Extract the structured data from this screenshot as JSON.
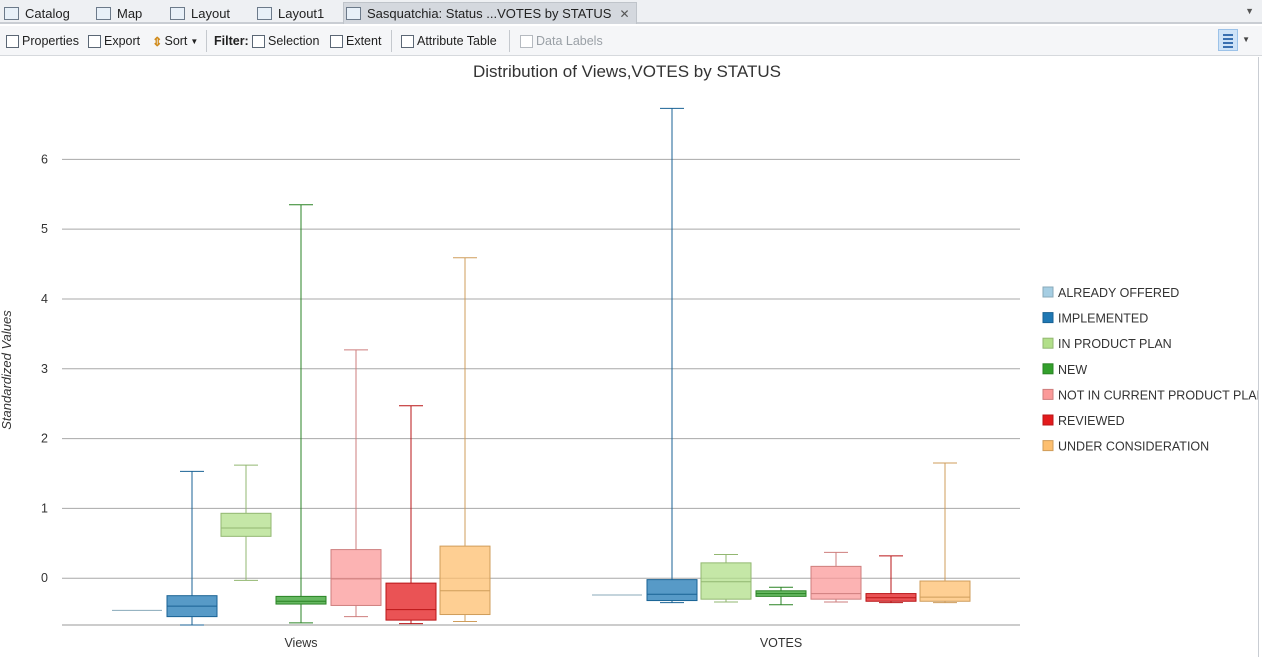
{
  "tabs": [
    {
      "label": "Catalog",
      "icon": "catalog-icon"
    },
    {
      "label": "Map",
      "icon": "map-icon"
    },
    {
      "label": "Layout",
      "icon": "layout-icon"
    },
    {
      "label": "Layout1",
      "icon": "layout-icon"
    },
    {
      "label": "Sasquatchia: Status ...VOTES by STATUS",
      "icon": "chart-icon",
      "active": true,
      "close": "✕"
    }
  ],
  "toolbar": {
    "properties": "Properties",
    "export": "Export",
    "sort": "Sort",
    "filter_label": "Filter:",
    "selection": "Selection",
    "extent": "Extent",
    "attribute_table": "Attribute Table",
    "data_labels": "Data Labels"
  },
  "chart_data": {
    "type": "boxplot",
    "title": "Distribution of Views,VOTES by STATUS",
    "xlabel": "",
    "ylabel": "Standardized Values",
    "categories": [
      "Views",
      "VOTES"
    ],
    "y_ticks": [
      0,
      1,
      2,
      3,
      4,
      5,
      6
    ],
    "ylim": [
      -0.67,
      6.85
    ],
    "grid": true,
    "legend_position": "right",
    "series": [
      {
        "name": "ALREADY OFFERED",
        "color": "#a6cee3",
        "boxes": [
          {
            "min": -0.46,
            "q1": -0.46,
            "median": -0.46,
            "q3": -0.46,
            "max": -0.46
          },
          {
            "min": -0.24,
            "q1": -0.24,
            "median": -0.24,
            "q3": -0.24,
            "max": -0.24
          }
        ]
      },
      {
        "name": "IMPLEMENTED",
        "color": "#1f78b4",
        "boxes": [
          {
            "min": -0.67,
            "q1": -0.55,
            "median": -0.4,
            "q3": -0.25,
            "max": 1.53
          },
          {
            "min": -0.35,
            "q1": -0.32,
            "median": -0.23,
            "q3": -0.02,
            "max": 6.73
          }
        ]
      },
      {
        "name": "IN PRODUCT PLAN",
        "color": "#b2df8a",
        "boxes": [
          {
            "min": -0.03,
            "q1": 0.6,
            "median": 0.72,
            "q3": 0.93,
            "max": 1.62
          },
          {
            "min": -0.34,
            "q1": -0.3,
            "median": -0.05,
            "q3": 0.22,
            "max": 0.34
          }
        ]
      },
      {
        "name": "NEW",
        "color": "#33a02c",
        "boxes": [
          {
            "min": -0.64,
            "q1": -0.37,
            "median": -0.33,
            "q3": -0.26,
            "max": 5.35
          },
          {
            "min": -0.38,
            "q1": -0.26,
            "median": -0.22,
            "q3": -0.18,
            "max": -0.13
          }
        ]
      },
      {
        "name": "NOT IN CURRENT PRODUCT PLAN",
        "color": "#fb9a99",
        "boxes": [
          {
            "min": -0.55,
            "q1": -0.39,
            "median": -0.01,
            "q3": 0.41,
            "max": 3.27
          },
          {
            "min": -0.34,
            "q1": -0.3,
            "median": -0.22,
            "q3": 0.17,
            "max": 0.37
          }
        ]
      },
      {
        "name": "REVIEWED",
        "color": "#e31a1c",
        "boxes": [
          {
            "min": -0.65,
            "q1": -0.6,
            "median": -0.45,
            "q3": -0.07,
            "max": 2.47
          },
          {
            "min": -0.35,
            "q1": -0.33,
            "median": -0.28,
            "q3": -0.22,
            "max": 0.32
          }
        ]
      },
      {
        "name": "UNDER CONSIDERATION",
        "color": "#fdbf6f",
        "boxes": [
          {
            "min": -0.62,
            "q1": -0.52,
            "median": -0.18,
            "q3": 0.46,
            "max": 4.59
          },
          {
            "min": -0.35,
            "q1": -0.33,
            "median": -0.27,
            "q3": -0.04,
            "max": 1.65
          }
        ]
      }
    ]
  }
}
